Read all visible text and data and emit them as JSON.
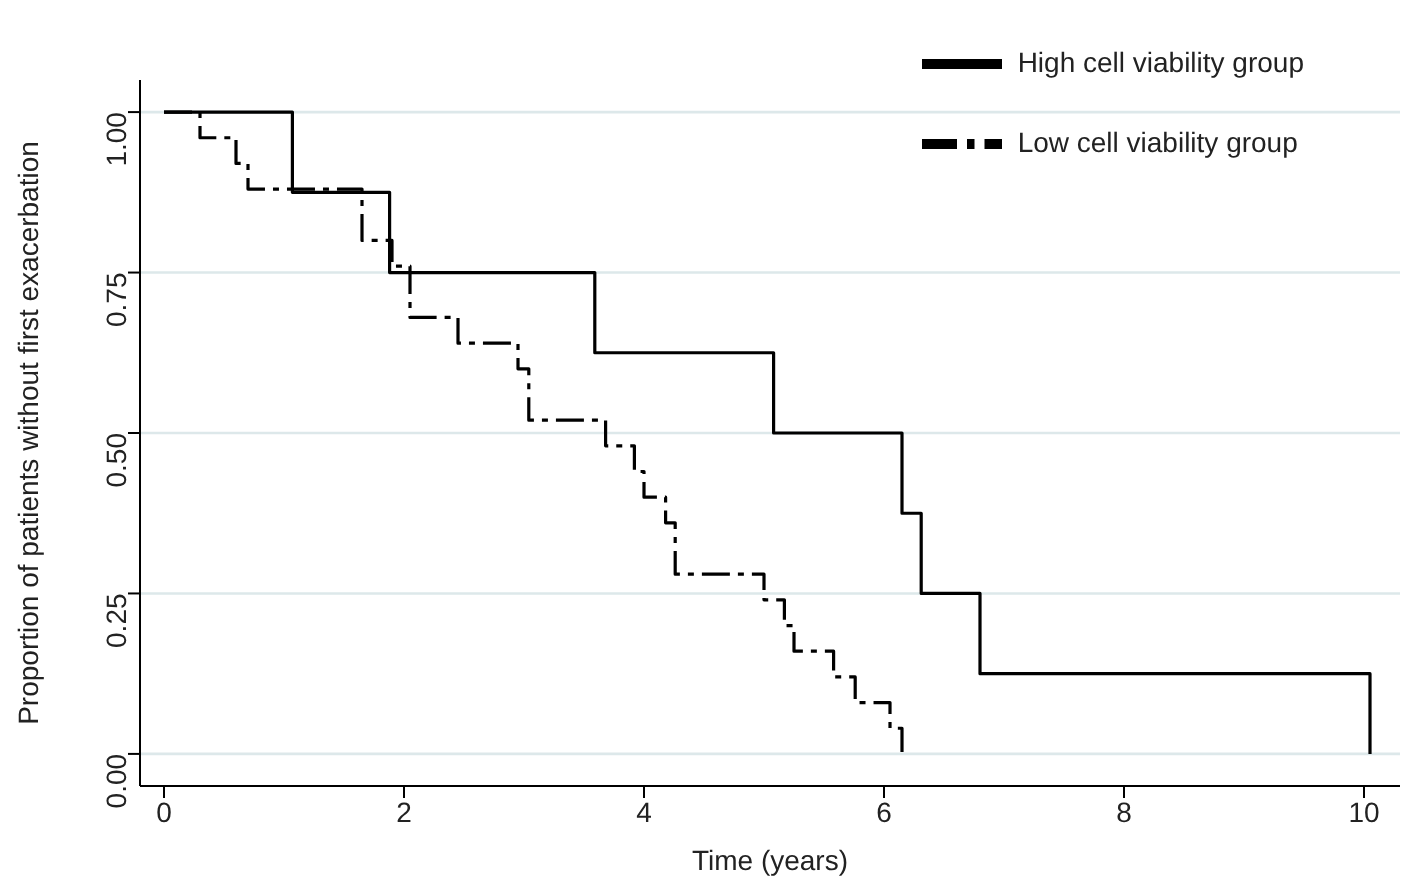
{
  "chart_data": {
    "type": "step",
    "xlabel": "Time (years)",
    "ylabel": "Proportion of patients without first exacerbation",
    "series": [
      {
        "name": "High cell viability group",
        "color": "#000000",
        "line_style": "solid",
        "x": [
          0,
          1.07,
          1.88,
          3.59,
          5.08,
          6.15,
          6.31,
          6.8,
          10.05
        ],
        "values": [
          1,
          0.875,
          0.75,
          0.625,
          0.5,
          0.375,
          0.25,
          0.125,
          0
        ]
      },
      {
        "name": "Low cell viability group",
        "color": "#000000",
        "line_style": "dashdot",
        "x": [
          0,
          0.3,
          0.6,
          0.7,
          1.65,
          1.9,
          2.05,
          2.45,
          2.95,
          3.04,
          3.68,
          3.92,
          4.0,
          4.18,
          4.26,
          5.0,
          5.17,
          5.25,
          5.58,
          5.76,
          6.05,
          6.15
        ],
        "values": [
          1,
          0.96,
          0.92,
          0.88,
          0.8,
          0.76,
          0.68,
          0.64,
          0.6,
          0.52,
          0.48,
          0.44,
          0.4,
          0.36,
          0.28,
          0.24,
          0.2,
          0.16,
          0.12,
          0.08,
          0.04,
          0
        ]
      }
    ],
    "xlim": [
      -0.2,
      10.3
    ],
    "xticks": [
      0,
      2,
      4,
      6,
      8,
      10
    ],
    "ylim": [
      -0.05,
      1.05
    ],
    "yticks": [
      {
        "value": 0,
        "label": "0.00"
      },
      {
        "value": 0.25,
        "label": "0.25"
      },
      {
        "value": 0.5,
        "label": "0.50"
      },
      {
        "value": 0.75,
        "label": "0.75"
      },
      {
        "value": 1,
        "label": "1.00"
      }
    ],
    "grid": "y",
    "legend": "top right",
    "marker": "none"
  }
}
